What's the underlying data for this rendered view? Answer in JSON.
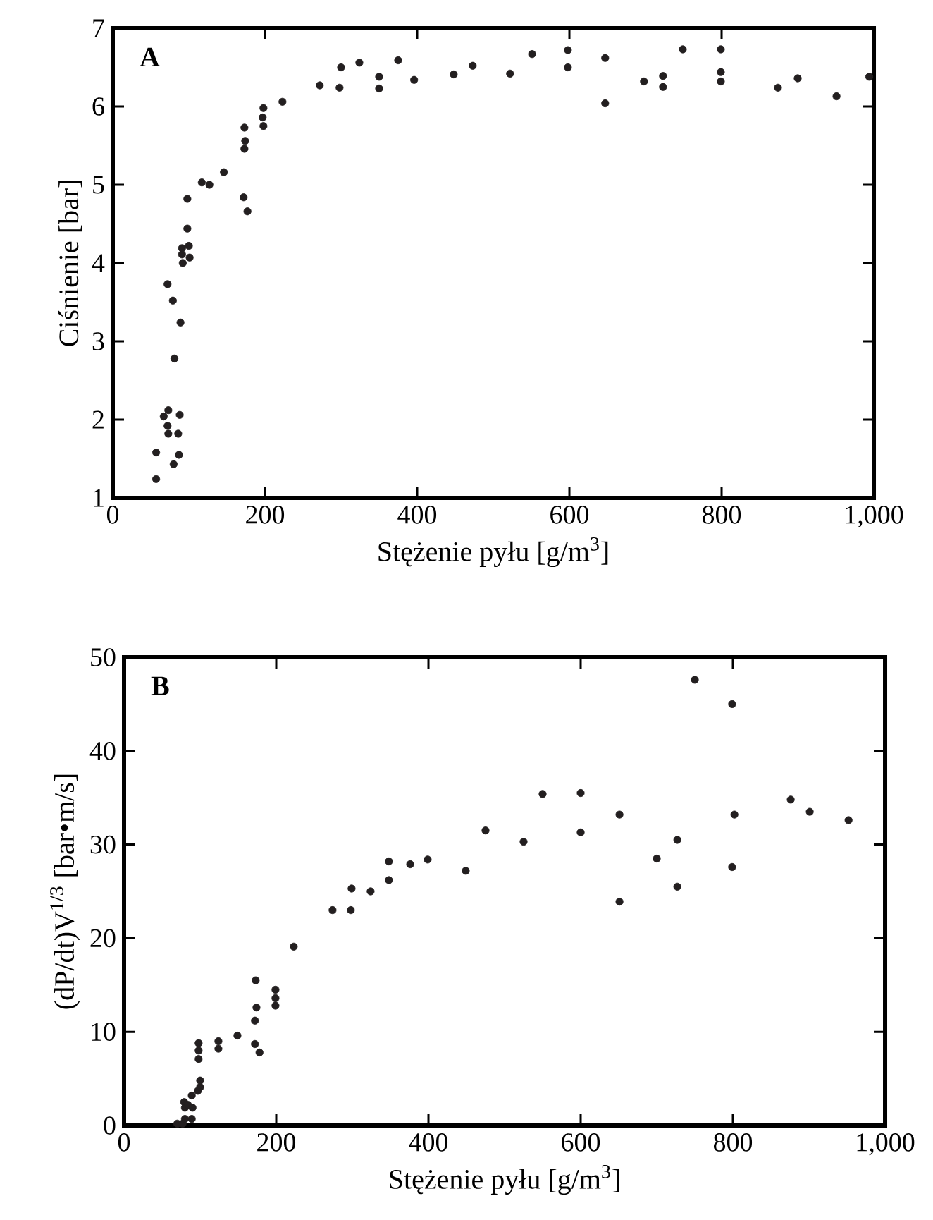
{
  "chart_data": [
    {
      "type": "scatter",
      "xlabel": "Stężenie pyłu [g/m$^{3}$]",
      "ylabel": "Ciśnienie [bar]",
      "annotations": [
        "A"
      ],
      "xlim": [
        0,
        1000
      ],
      "ylim": [
        1,
        7
      ],
      "xticks": [
        0,
        200,
        400,
        600,
        800,
        {
          "value": 1000,
          "label": "1,000"
        }
      ],
      "yticks": [
        1,
        2,
        3,
        4,
        5,
        6,
        7
      ],
      "grid": false,
      "series": [
        {
          "color": "#231f20",
          "x": [
            57,
            57,
            67,
            73,
            72,
            73,
            72,
            79,
            81,
            80,
            86,
            87,
            88,
            89,
            92,
            91,
            91,
            98,
            98,
            100,
            101,
            117,
            127,
            146,
            172,
            177,
            173,
            174,
            173,
            198,
            197,
            198,
            223,
            272,
            298,
            300,
            324,
            350,
            350,
            375,
            396,
            448,
            473,
            522,
            551,
            598,
            598,
            647,
            647,
            698,
            723,
            723,
            749,
            799,
            799,
            799,
            874,
            900,
            951,
            994
          ],
          "values": [
            1.24,
            1.58,
            2.04,
            2.12,
            1.92,
            1.82,
            3.73,
            3.52,
            2.78,
            1.43,
            1.82,
            1.55,
            2.06,
            3.24,
            4.0,
            4.11,
            4.19,
            4.82,
            4.44,
            4.22,
            4.07,
            5.03,
            5.0,
            5.16,
            4.84,
            4.66,
            5.46,
            5.56,
            5.73,
            5.75,
            5.86,
            5.98,
            6.06,
            6.27,
            6.24,
            6.5,
            6.56,
            6.38,
            6.23,
            6.59,
            6.34,
            6.41,
            6.52,
            6.42,
            6.67,
            6.72,
            6.5,
            6.62,
            6.04,
            6.32,
            6.39,
            6.25,
            6.73,
            6.73,
            6.44,
            6.32,
            6.24,
            6.36,
            6.13,
            6.38
          ]
        }
      ]
    },
    {
      "type": "scatter",
      "xlabel": "Stężenie pyłu [g/m$^{3}$]",
      "ylabel": "(dP/dt)V$^{1/3}$ [bar•m/s]",
      "annotations": [
        "B"
      ],
      "xlim": [
        0,
        1000
      ],
      "ylim": [
        0,
        50
      ],
      "xticks": [
        0,
        200,
        400,
        600,
        800,
        {
          "value": 1000,
          "label": "1,000"
        }
      ],
      "yticks": [
        0,
        10,
        20,
        30,
        40,
        50
      ],
      "grid": false,
      "series": [
        {
          "color": "#231f20",
          "x": [
            70,
            77,
            80,
            89,
            79,
            80,
            84,
            90,
            89,
            97,
            100,
            100,
            98,
            98,
            98,
            124,
            124,
            149,
            173,
            174,
            172,
            172,
            178,
            199,
            199,
            199,
            223,
            274,
            298,
            299,
            324,
            348,
            348,
            376,
            399,
            449,
            475,
            525,
            550,
            600,
            600,
            651,
            651,
            700,
            727,
            727,
            750,
            799,
            802,
            799,
            876,
            901,
            952
          ],
          "values": [
            0.2,
            0.2,
            0.7,
            0.7,
            2.5,
            1.9,
            2.2,
            1.9,
            3.2,
            3.7,
            4.1,
            4.8,
            7.1,
            8.0,
            8.8,
            8.2,
            9.0,
            9.6,
            15.5,
            12.6,
            11.2,
            8.7,
            7.8,
            14.5,
            13.6,
            12.8,
            19.1,
            23.0,
            23.0,
            25.3,
            25.0,
            26.2,
            28.2,
            27.9,
            28.4,
            27.2,
            31.5,
            30.3,
            35.4,
            31.3,
            35.5,
            33.2,
            23.9,
            28.5,
            30.5,
            25.5,
            47.6,
            45.0,
            33.2,
            27.6,
            34.8,
            33.5,
            32.6
          ]
        }
      ]
    }
  ]
}
